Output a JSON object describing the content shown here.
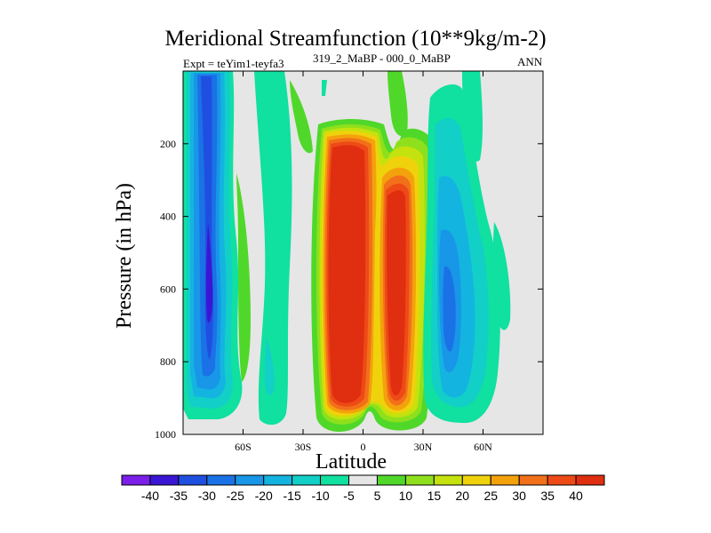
{
  "chart_data": {
    "type": "heatmap",
    "title": "Meridional Streamfunction (10**9kg/m-2)",
    "left_label": "Expt = teYim1-teyfa3",
    "subtitle": "319_2_MaBP - 000_0_MaBP",
    "right_label": "ANN",
    "xlabel": "Latitude",
    "ylabel": "Pressure (in hPa)",
    "xlim": [
      -90,
      90
    ],
    "ylim": [
      0,
      1000
    ],
    "y_inverted": true,
    "x_ticks": [
      {
        "v": -60,
        "label": "60S"
      },
      {
        "v": -30,
        "label": "30S"
      },
      {
        "v": 0,
        "label": "0"
      },
      {
        "v": 30,
        "label": "30N"
      },
      {
        "v": 60,
        "label": "60N"
      }
    ],
    "y_ticks": [
      {
        "v": 200,
        "label": "200"
      },
      {
        "v": 400,
        "label": "400"
      },
      {
        "v": 600,
        "label": "600"
      },
      {
        "v": 800,
        "label": "800"
      },
      {
        "v": 1000,
        "label": "1000"
      }
    ],
    "contour_levels": [
      -40,
      -35,
      -30,
      -25,
      -20,
      -15,
      -10,
      -5,
      5,
      10,
      15,
      20,
      25,
      30,
      35,
      40
    ],
    "colorbar_labels": [
      "-40",
      "-35",
      "-30",
      "-25",
      "-20",
      "-15",
      "-10",
      "-5",
      "5",
      "10",
      "15",
      "20",
      "25",
      "30",
      "35",
      "40"
    ],
    "colorbar_colors": [
      "#7a1ee8",
      "#3a16d4",
      "#1f4fe0",
      "#1a72e6",
      "#1896e8",
      "#14b4e0",
      "#12cfc8",
      "#10e0a0",
      "#e6e6e6",
      "#4fd82a",
      "#8fe01c",
      "#c4e20e",
      "#f0d20c",
      "#f4a20c",
      "#f2701a",
      "#ee4a16",
      "#e02e10"
    ],
    "zero_band_color": "#e6e6e6",
    "features": [
      {
        "name": "SH high-latitude negative cell",
        "center_lat": -75,
        "center_p": 600,
        "min_value": -35
      },
      {
        "name": "Tropical positive cell south of equator",
        "center_lat": -11,
        "center_p": 600,
        "max_value": 40
      },
      {
        "name": "Tropical positive cell north of equator",
        "center_lat": 15,
        "center_p": 600,
        "max_value": 40
      },
      {
        "name": "NH mid-latitude negative cell",
        "center_lat": 38,
        "center_p": 700,
        "min_value": -25
      }
    ]
  }
}
